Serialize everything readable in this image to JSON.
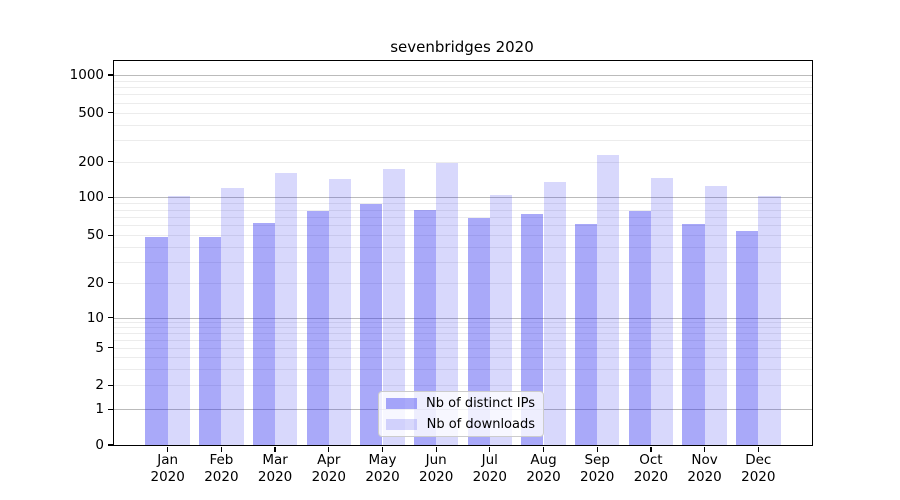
{
  "figure": {
    "title": "sevenbridges 2020"
  },
  "legend": {
    "items": [
      {
        "label": "Nb of distinct IPs"
      },
      {
        "label": "Nb of downloads"
      }
    ]
  },
  "colors": {
    "distinct_ips_bar": "rgba(40,40,240,0.40)",
    "downloads_bar": "rgba(40,40,240,0.18)",
    "major_gridline": "#bbbbbb",
    "minor_gridline": "#ececec",
    "axis": "#000000"
  },
  "chart_data": {
    "type": "bar",
    "title": "sevenbridges 2020",
    "categories": [
      "Jan 2020",
      "Feb 2020",
      "Mar 2020",
      "Apr 2020",
      "May 2020",
      "Jun 2020",
      "Jul 2020",
      "Aug 2020",
      "Sep 2020",
      "Oct 2020",
      "Nov 2020",
      "Dec 2020"
    ],
    "series": [
      {
        "name": "Nb of distinct IPs",
        "color": "rgba(40,40,240,0.40)",
        "values": [
          48,
          48,
          63,
          78,
          88,
          80,
          68,
          74,
          62,
          78,
          62,
          54
        ]
      },
      {
        "name": "Nb of downloads",
        "color": "rgba(40,40,240,0.18)",
        "values": [
          102,
          120,
          160,
          142,
          175,
          195,
          105,
          135,
          225,
          145,
          125,
          102
        ]
      }
    ],
    "xlabel": "",
    "ylabel": "",
    "yscale": "symlog",
    "y_ticks": [
      0,
      1,
      2,
      5,
      10,
      20,
      50,
      100,
      200,
      500,
      1000
    ],
    "ylim": [
      0,
      1400
    ],
    "grid": "on",
    "legend_position": "lower center"
  }
}
